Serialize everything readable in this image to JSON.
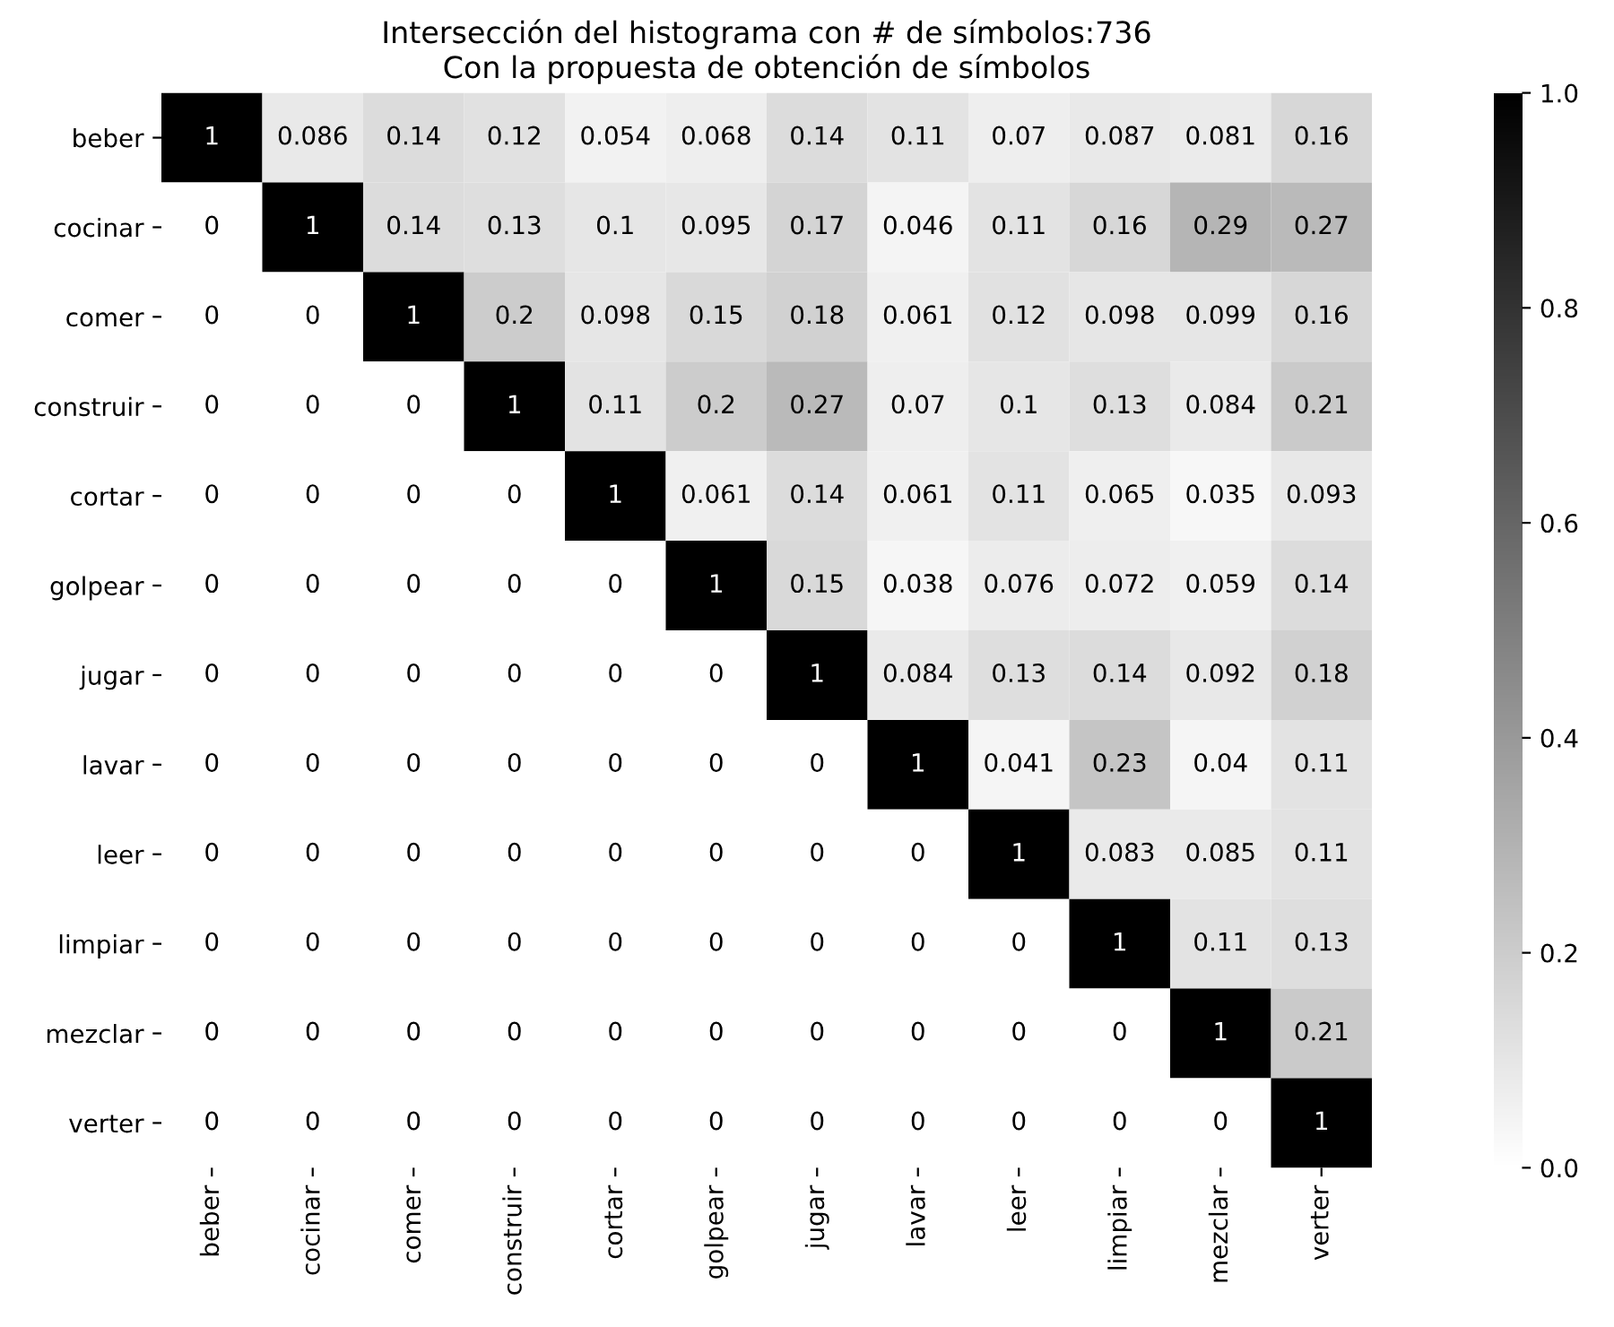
{
  "chart_data": {
    "type": "heatmap",
    "title": "Intersección del histograma con # de símbolos:736\nCon la propuesta de obtención de símbolos",
    "categories": [
      "beber",
      "cocinar",
      "comer",
      "construir",
      "cortar",
      "golpear",
      "jugar",
      "lavar",
      "leer",
      "limpiar",
      "mezclar",
      "verter"
    ],
    "y_categories": [
      "beber",
      "cocinar",
      "comer",
      "construir",
      "cortar",
      "golpear",
      "jugar",
      "lavar",
      "leer",
      "limpiar",
      "mezclar",
      "verter"
    ],
    "cells": [
      [
        1,
        0.086,
        0.14,
        0.12,
        0.054,
        0.068,
        0.14,
        0.11,
        0.07,
        0.087,
        0.081,
        0.16
      ],
      [
        0,
        1,
        0.14,
        0.13,
        0.1,
        0.095,
        0.17,
        0.046,
        0.11,
        0.16,
        0.29,
        0.27
      ],
      [
        0,
        0,
        1,
        0.2,
        0.098,
        0.15,
        0.18,
        0.061,
        0.12,
        0.098,
        0.099,
        0.16
      ],
      [
        0,
        0,
        0,
        1,
        0.11,
        0.2,
        0.27,
        0.07,
        0.1,
        0.13,
        0.084,
        0.21
      ],
      [
        0,
        0,
        0,
        0,
        1,
        0.061,
        0.14,
        0.061,
        0.11,
        0.065,
        0.035,
        0.093
      ],
      [
        0,
        0,
        0,
        0,
        0,
        1,
        0.15,
        0.038,
        0.076,
        0.072,
        0.059,
        0.14
      ],
      [
        0,
        0,
        0,
        0,
        0,
        0,
        1,
        0.084,
        0.13,
        0.14,
        0.092,
        0.18
      ],
      [
        0,
        0,
        0,
        0,
        0,
        0,
        0,
        1,
        0.041,
        0.23,
        0.04,
        0.11
      ],
      [
        0,
        0,
        0,
        0,
        0,
        0,
        0,
        0,
        1,
        0.083,
        0.085,
        0.11
      ],
      [
        0,
        0,
        0,
        0,
        0,
        0,
        0,
        0,
        0,
        1,
        0.11,
        0.13
      ],
      [
        0,
        0,
        0,
        0,
        0,
        0,
        0,
        0,
        0,
        0,
        1,
        0.21
      ],
      [
        0,
        0,
        0,
        0,
        0,
        0,
        0,
        0,
        0,
        0,
        0,
        1
      ]
    ],
    "data_labels": true,
    "clim": [
      0,
      1
    ],
    "cticks": [
      {
        "value": 0,
        "label": "0.0"
      },
      {
        "value": 0.2,
        "label": "0.2"
      },
      {
        "value": 0.4,
        "label": "0.4"
      },
      {
        "value": 0.6,
        "label": "0.6"
      },
      {
        "value": 0.8,
        "label": "0.8"
      },
      {
        "value": 1,
        "label": "1.0"
      }
    ]
  }
}
